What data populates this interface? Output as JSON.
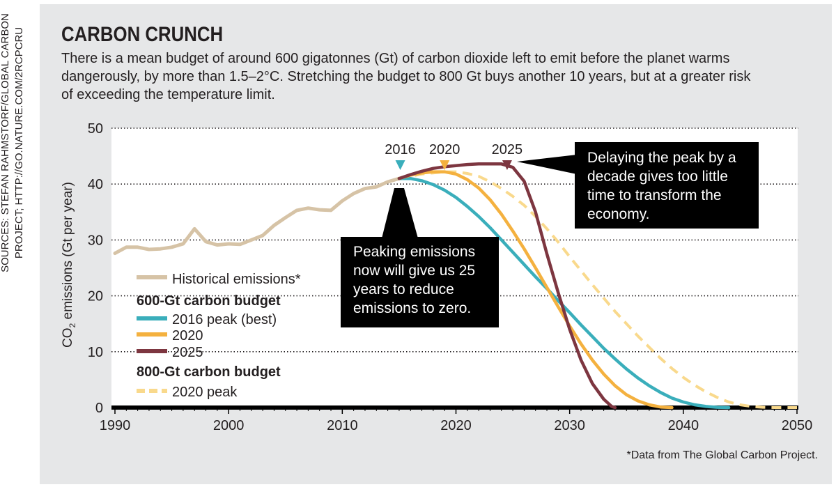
{
  "source_note": "SOURCES: STEFAN RAHMSTORF/GLOBAL CARBON PROJECT; HTTP://GO.NATURE.COM/2RCPCRU",
  "title": "CARBON CRUNCH",
  "subtitle": "There is a mean budget of around 600 gigatonnes (Gt) of carbon dioxide left to emit before the planet warms dangerously, by more than 1.5–2°C. Stretching the budget to 800 Gt buys another 10 years, but at a greater risk of exceeding the temperature limit.",
  "footnote": "*Data from The Global Carbon Project.",
  "callouts": {
    "peak_now": "Peaking emissions now will give us 25 years to reduce emissions to zero.",
    "delay": "Delaying the peak by a decade gives too little time to transform the economy."
  },
  "legend": {
    "historical": "Historical emissions*",
    "budget_600_heading": "600-Gt carbon budget",
    "peak_2016": "2016 peak (best)",
    "peak_2020": "2020",
    "peak_2025": "2025",
    "budget_800_heading": "800-Gt carbon budget",
    "peak_2020_800": "2020 peak"
  },
  "colors": {
    "historical": "#d6c3a6",
    "peak_2016": "#3aaebb",
    "peak_2020": "#f4b13f",
    "peak_2025": "#7d3640",
    "peak_2020_800": "#f9d98c",
    "background": "#e6e7e8",
    "callout_bg": "#000000"
  },
  "chart_data": {
    "type": "line",
    "title": "CARBON CRUNCH",
    "xlabel": "",
    "ylabel_prefix": "CO",
    "ylabel_sub": "2",
    "ylabel_suffix": " emissions (Gt per year)",
    "xlim": [
      1990,
      2050
    ],
    "ylim": [
      0,
      50
    ],
    "x_ticks": [
      1990,
      2000,
      2010,
      2020,
      2030,
      2040,
      2050
    ],
    "y_ticks": [
      0,
      10,
      20,
      30,
      40,
      50
    ],
    "grid": "horizontal dotted",
    "legend_placement": "bottom-left",
    "peak_markers": [
      {
        "label": "2016",
        "x": 2015.1,
        "color": "#3aaebb"
      },
      {
        "label": "2020",
        "x": 2019.0,
        "color": "#f4b13f"
      },
      {
        "label": "2025",
        "x": 2024.5,
        "color": "#7d3640"
      }
    ],
    "series": [
      {
        "name": "Historical emissions*",
        "key": "historical",
        "style": "solid",
        "points": [
          [
            1990,
            27.6
          ],
          [
            1991,
            28.7
          ],
          [
            1992,
            28.7
          ],
          [
            1993,
            28.3
          ],
          [
            1994,
            28.4
          ],
          [
            1995,
            28.7
          ],
          [
            1996,
            29.3
          ],
          [
            1997,
            32.0
          ],
          [
            1998,
            29.7
          ],
          [
            1999,
            29.1
          ],
          [
            2000,
            29.3
          ],
          [
            2001,
            29.2
          ],
          [
            2002,
            30.0
          ],
          [
            2003,
            30.8
          ],
          [
            2004,
            32.6
          ],
          [
            2005,
            34.0
          ],
          [
            2006,
            35.3
          ],
          [
            2007,
            35.7
          ],
          [
            2008,
            35.4
          ],
          [
            2009,
            35.3
          ],
          [
            2010,
            37.0
          ],
          [
            2011,
            38.3
          ],
          [
            2012,
            39.2
          ],
          [
            2013,
            39.5
          ],
          [
            2014,
            40.4
          ],
          [
            2015,
            41.0
          ]
        ]
      },
      {
        "name": "2020 peak",
        "key": "peak_2020_800",
        "style": "dashed",
        "points": [
          [
            2015,
            41.0
          ],
          [
            2016,
            41.4
          ],
          [
            2017,
            41.8
          ],
          [
            2018,
            42.0
          ],
          [
            2019,
            42.2
          ],
          [
            2020,
            42.2
          ],
          [
            2021,
            41.9
          ],
          [
            2022,
            41.4
          ],
          [
            2023,
            40.4
          ],
          [
            2024,
            39.2
          ],
          [
            2025,
            37.8
          ],
          [
            2026,
            36.2
          ],
          [
            2027,
            34.2
          ],
          [
            2028,
            32.0
          ],
          [
            2029,
            29.6
          ],
          [
            2030,
            27.0
          ],
          [
            2031,
            24.5
          ],
          [
            2032,
            22.0
          ],
          [
            2033,
            19.6
          ],
          [
            2034,
            17.2
          ],
          [
            2035,
            15.0
          ],
          [
            2036,
            12.8
          ],
          [
            2037,
            10.8
          ],
          [
            2038,
            8.8
          ],
          [
            2039,
            7.0
          ],
          [
            2040,
            5.4
          ],
          [
            2041,
            4.0
          ],
          [
            2042,
            2.8
          ],
          [
            2043,
            1.8
          ],
          [
            2044,
            1.0
          ],
          [
            2045,
            0.5
          ],
          [
            2046,
            0.2
          ],
          [
            2047,
            0.05
          ],
          [
            2048,
            0.0
          ],
          [
            2050,
            0.0
          ]
        ]
      },
      {
        "name": "2016 peak (best)",
        "key": "peak_2016",
        "style": "solid",
        "points": [
          [
            2015,
            41.0
          ],
          [
            2016,
            41.0
          ],
          [
            2017,
            40.6
          ],
          [
            2018,
            39.9
          ],
          [
            2019,
            38.9
          ],
          [
            2020,
            37.6
          ],
          [
            2021,
            36.0
          ],
          [
            2022,
            34.2
          ],
          [
            2023,
            32.2
          ],
          [
            2024,
            30.0
          ],
          [
            2025,
            27.8
          ],
          [
            2026,
            25.6
          ],
          [
            2027,
            23.4
          ],
          [
            2028,
            21.3
          ],
          [
            2029,
            19.1
          ],
          [
            2030,
            17.0
          ],
          [
            2031,
            14.8
          ],
          [
            2032,
            12.7
          ],
          [
            2033,
            10.6
          ],
          [
            2034,
            8.7
          ],
          [
            2035,
            6.9
          ],
          [
            2036,
            5.3
          ],
          [
            2037,
            3.9
          ],
          [
            2038,
            2.7
          ],
          [
            2039,
            1.7
          ],
          [
            2040,
            1.0
          ],
          [
            2041,
            0.5
          ],
          [
            2042,
            0.2
          ],
          [
            2043,
            0.05
          ],
          [
            2044,
            0.0
          ]
        ]
      },
      {
        "name": "2020",
        "key": "peak_2020",
        "style": "solid",
        "points": [
          [
            2015,
            41.0
          ],
          [
            2016,
            41.6
          ],
          [
            2017,
            42.0
          ],
          [
            2018,
            42.2
          ],
          [
            2019,
            42.2
          ],
          [
            2020,
            41.8
          ],
          [
            2021,
            40.8
          ],
          [
            2022,
            39.3
          ],
          [
            2023,
            37.2
          ],
          [
            2024,
            34.6
          ],
          [
            2025,
            31.6
          ],
          [
            2026,
            28.4
          ],
          [
            2027,
            25.0
          ],
          [
            2028,
            21.5
          ],
          [
            2029,
            18.0
          ],
          [
            2030,
            14.6
          ],
          [
            2031,
            11.4
          ],
          [
            2032,
            8.5
          ],
          [
            2033,
            6.0
          ],
          [
            2034,
            3.9
          ],
          [
            2035,
            2.3
          ],
          [
            2036,
            1.2
          ],
          [
            2037,
            0.5
          ],
          [
            2038,
            0.1
          ],
          [
            2039,
            0.0
          ]
        ]
      },
      {
        "name": "2025",
        "key": "peak_2025",
        "style": "solid",
        "points": [
          [
            2015,
            41.0
          ],
          [
            2016,
            41.7
          ],
          [
            2017,
            42.3
          ],
          [
            2018,
            42.8
          ],
          [
            2019,
            43.1
          ],
          [
            2020,
            43.3
          ],
          [
            2021,
            43.5
          ],
          [
            2022,
            43.6
          ],
          [
            2023,
            43.6
          ],
          [
            2024,
            43.6
          ],
          [
            2025,
            43.0
          ],
          [
            2026,
            40.5
          ],
          [
            2027,
            35.0
          ],
          [
            2028,
            27.5
          ],
          [
            2029,
            20.5
          ],
          [
            2030,
            14.0
          ],
          [
            2031,
            8.5
          ],
          [
            2032,
            4.3
          ],
          [
            2033,
            1.5
          ],
          [
            2033.7,
            0.2
          ],
          [
            2034,
            0.0
          ]
        ]
      }
    ]
  }
}
